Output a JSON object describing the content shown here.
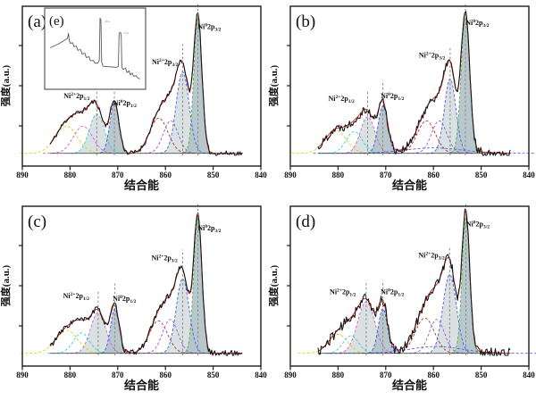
{
  "figure": {
    "background": "#ffffff",
    "colors": {
      "data": "#141414",
      "envelope": "#cf3128",
      "baseline": "#3a3a3a",
      "guide": "#8a8a8a",
      "fill_light": "#cfd9dc",
      "fill_dark": "#b2c2c8",
      "frame": "#1c1c1c",
      "inset_line": "#5a5a5a",
      "tick_text": "#111111"
    }
  },
  "chart_data": [
    {
      "id": "a",
      "panel_label": "(a)",
      "type": "line",
      "xlabel": "结合能",
      "ylabel": "强度(a.u.)",
      "xlim": [
        890,
        840
      ],
      "x_ticks": [
        890,
        880,
        870,
        860,
        850,
        840
      ],
      "data_range": [
        884.2,
        843.8
      ],
      "baseline": 0.015,
      "noise": 0.018,
      "seed": 11,
      "peaks": [
        {
          "center": 880.8,
          "sigma": 2.3,
          "amp": 0.2,
          "color": "#d9d419",
          "fill": null
        },
        {
          "center": 877.3,
          "sigma": 2.0,
          "amp": 0.2,
          "color": "#cf5fd3",
          "fill": null
        },
        {
          "center": 874.4,
          "sigma": 1.55,
          "amp": 0.29,
          "color": "#39cfcf",
          "fill": "light"
        },
        {
          "center": 870.7,
          "sigma": 0.95,
          "amp": 0.37,
          "color": "#3b57e0",
          "fill": "dark"
        },
        {
          "center": 861.4,
          "sigma": 1.9,
          "amp": 0.26,
          "color": "#a03a3a",
          "fill": null
        },
        {
          "center": 858.9,
          "sigma": 1.55,
          "amp": 0.24,
          "color": "#9b59d0",
          "fill": null
        },
        {
          "center": 856.4,
          "sigma": 1.35,
          "amp": 0.6,
          "color": "#4763e8",
          "fill": "light"
        },
        {
          "center": 853.2,
          "sigma": 0.85,
          "amp": 1.0,
          "color": "#52b052",
          "fill": "dark"
        }
      ],
      "guides": [
        {
          "x": 874.4,
          "top": 0.47
        },
        {
          "x": 870.7,
          "top": 0.55
        },
        {
          "x": 856.4,
          "top": 0.82
        },
        {
          "x": 853.2,
          "top": 1.12
        }
      ],
      "annotations": [
        {
          "element": "Ni",
          "charge": "2+",
          "orbital": "2p",
          "spin": "1/2",
          "x": 878.6,
          "y": 0.42
        },
        {
          "element": "Ni",
          "charge": "0",
          "orbital": "2p",
          "spin": "1/2",
          "x": 868.5,
          "y": 0.37
        },
        {
          "element": "Ni",
          "charge": "2+",
          "orbital": "2p",
          "spin": "3/2",
          "x": 860.1,
          "y": 0.67
        },
        {
          "element": "Ni",
          "charge": "0",
          "orbital": "2p",
          "spin": "3/2",
          "x": 850.8,
          "y": 0.93
        }
      ]
    },
    {
      "id": "b",
      "panel_label": "(b)",
      "type": "line",
      "xlabel": "结合能",
      "ylabel": "强度(a.u.)",
      "xlim": [
        890,
        840
      ],
      "x_ticks": [
        890,
        880,
        870,
        860,
        850,
        840
      ],
      "data_range": [
        884.2,
        843.8
      ],
      "baseline": 0.015,
      "noise": 0.032,
      "seed": 22,
      "peaks": [
        {
          "center": 880.5,
          "sigma": 2.2,
          "amp": 0.17,
          "color": "#d9d419",
          "fill": null
        },
        {
          "center": 876.6,
          "sigma": 1.7,
          "amp": 0.16,
          "color": "#39cfcf",
          "fill": null
        },
        {
          "center": 873.8,
          "sigma": 1.5,
          "amp": 0.27,
          "color": "#cf5fd3",
          "fill": "light"
        },
        {
          "center": 870.6,
          "sigma": 1.0,
          "amp": 0.35,
          "color": "#3b57e0",
          "fill": "dark"
        },
        {
          "center": 861.5,
          "sigma": 1.9,
          "amp": 0.24,
          "color": "#a03a3a",
          "fill": null
        },
        {
          "center": 858.8,
          "sigma": 1.6,
          "amp": 0.24,
          "color": "#9b59d0",
          "fill": null
        },
        {
          "center": 860.0,
          "sigma": 6.0,
          "amp": 0.04,
          "color": "#4763e8",
          "fill": null
        },
        {
          "center": 856.5,
          "sigma": 1.2,
          "amp": 0.55,
          "color": "#4763e8",
          "fill": "light"
        },
        {
          "center": 853.3,
          "sigma": 0.9,
          "amp": 1.0,
          "color": "#52b052",
          "fill": "dark"
        }
      ],
      "guides": [
        {
          "x": 873.8,
          "top": 0.47
        },
        {
          "x": 870.6,
          "top": 0.55
        },
        {
          "x": 856.5,
          "top": 0.8
        },
        {
          "x": 853.3,
          "top": 1.13
        }
      ],
      "annotations": [
        {
          "element": "Ni",
          "charge": "2+",
          "orbital": "2p",
          "spin": "1/2",
          "x": 879.3,
          "y": 0.4
        },
        {
          "element": "Ni",
          "charge": "0",
          "orbital": "2p",
          "spin": "1/2",
          "x": 868.6,
          "y": 0.42
        },
        {
          "element": "Ni",
          "charge": "2+",
          "orbital": "2p",
          "spin": "3/2",
          "x": 860.3,
          "y": 0.72
        },
        {
          "element": "Ni",
          "charge": "0",
          "orbital": "2p",
          "spin": "3/2",
          "x": 850.8,
          "y": 0.96
        }
      ]
    },
    {
      "id": "c",
      "panel_label": "(c)",
      "type": "line",
      "xlabel": "结合能",
      "ylabel": "强度(a.u.)",
      "xlim": [
        890,
        840
      ],
      "x_ticks": [
        890,
        880,
        870,
        860,
        850,
        840
      ],
      "data_range": [
        884.2,
        843.8
      ],
      "baseline": 0.015,
      "noise": 0.022,
      "seed": 33,
      "peaks": [
        {
          "center": 880.7,
          "sigma": 2.3,
          "amp": 0.17,
          "color": "#d9d419",
          "fill": null
        },
        {
          "center": 877.6,
          "sigma": 1.7,
          "amp": 0.15,
          "color": "#39cfcf",
          "fill": null
        },
        {
          "center": 874.1,
          "sigma": 1.6,
          "amp": 0.3,
          "color": "#cf5fd3",
          "fill": "light"
        },
        {
          "center": 870.6,
          "sigma": 0.9,
          "amp": 0.33,
          "color": "#3b57e0",
          "fill": "dark"
        },
        {
          "center": 861.5,
          "sigma": 1.9,
          "amp": 0.24,
          "color": "#a03a3a",
          "fill": null
        },
        {
          "center": 859.0,
          "sigma": 1.6,
          "amp": 0.25,
          "color": "#9b59d0",
          "fill": null
        },
        {
          "center": 856.4,
          "sigma": 1.35,
          "amp": 0.55,
          "color": "#4763e8",
          "fill": "light"
        },
        {
          "center": 853.2,
          "sigma": 0.85,
          "amp": 1.0,
          "color": "#52b052",
          "fill": "dark"
        }
      ],
      "guides": [
        {
          "x": 874.1,
          "top": 0.47
        },
        {
          "x": 870.6,
          "top": 0.53
        },
        {
          "x": 856.4,
          "top": 0.78
        },
        {
          "x": 853.2,
          "top": 1.12
        }
      ],
      "annotations": [
        {
          "element": "Ni",
          "charge": "2+",
          "orbital": "2p",
          "spin": "1/2",
          "x": 878.7,
          "y": 0.42
        },
        {
          "element": "Ni",
          "charge": "0",
          "orbital": "2p",
          "spin": "1/2",
          "x": 868.6,
          "y": 0.4
        },
        {
          "element": "Ni",
          "charge": "2+",
          "orbital": "2p",
          "spin": "3/2",
          "x": 860.2,
          "y": 0.7
        },
        {
          "element": "Ni",
          "charge": "0",
          "orbital": "2p",
          "spin": "3/2",
          "x": 850.8,
          "y": 0.92
        }
      ]
    },
    {
      "id": "d",
      "panel_label": "(d)",
      "type": "line",
      "xlabel": "结合能",
      "ylabel": "强度(a.u.)",
      "xlim": [
        890,
        840
      ],
      "x_ticks": [
        890,
        880,
        870,
        860,
        850,
        840
      ],
      "data_range": [
        884.2,
        843.8
      ],
      "baseline": 0.015,
      "noise": 0.038,
      "seed": 44,
      "peaks": [
        {
          "center": 880.0,
          "sigma": 2.0,
          "amp": 0.14,
          "color": "#d9d419",
          "fill": null
        },
        {
          "center": 877.3,
          "sigma": 1.6,
          "amp": 0.13,
          "color": "#39cfcf",
          "fill": null
        },
        {
          "center": 874.1,
          "sigma": 1.8,
          "amp": 0.38,
          "color": "#cf5fd3",
          "fill": "light"
        },
        {
          "center": 870.6,
          "sigma": 0.95,
          "amp": 0.33,
          "color": "#3b57e0",
          "fill": "dark"
        },
        {
          "center": 861.8,
          "sigma": 2.0,
          "amp": 0.26,
          "color": "#a03a3a",
          "fill": null
        },
        {
          "center": 859.3,
          "sigma": 1.6,
          "amp": 0.25,
          "color": "#9b59d0",
          "fill": null
        },
        {
          "center": 859.5,
          "sigma": 5.5,
          "amp": 0.05,
          "color": "#4763e8",
          "fill": null
        },
        {
          "center": 856.6,
          "sigma": 1.4,
          "amp": 0.58,
          "color": "#4763e8",
          "fill": "light"
        },
        {
          "center": 853.2,
          "sigma": 0.8,
          "amp": 1.0,
          "color": "#52b052",
          "fill": "dark"
        }
      ],
      "guides": [
        {
          "x": 874.1,
          "top": 0.55
        },
        {
          "x": 870.6,
          "top": 0.55
        },
        {
          "x": 856.6,
          "top": 0.8
        },
        {
          "x": 853.2,
          "top": 1.12
        }
      ],
      "annotations": [
        {
          "element": "Ni",
          "charge": "2+",
          "orbital": "2p",
          "spin": "1/2",
          "x": 879.0,
          "y": 0.45
        },
        {
          "element": "Ni",
          "charge": "0",
          "orbital": "2p",
          "spin": "1/2",
          "x": 868.6,
          "y": 0.45
        },
        {
          "element": "Ni",
          "charge": "2+",
          "orbital": "2p",
          "spin": "3/2",
          "x": 860.4,
          "y": 0.72
        },
        {
          "element": "Ni",
          "charge": "0",
          "orbital": "2p",
          "spin": "3/2",
          "x": 850.7,
          "y": 0.95
        }
      ]
    },
    {
      "id": "e",
      "panel_label": "(e)",
      "type": "line",
      "parent": "a",
      "points": [
        [
          0.02,
          0.5
        ],
        [
          0.07,
          0.47
        ],
        [
          0.12,
          0.44
        ],
        [
          0.17,
          0.4
        ],
        [
          0.205,
          0.37
        ],
        [
          0.215,
          0.3
        ],
        [
          0.225,
          0.4
        ],
        [
          0.235,
          0.44
        ],
        [
          0.26,
          0.43
        ],
        [
          0.275,
          0.485
        ],
        [
          0.3,
          0.475
        ],
        [
          0.315,
          0.535
        ],
        [
          0.345,
          0.525
        ],
        [
          0.36,
          0.585
        ],
        [
          0.39,
          0.575
        ],
        [
          0.405,
          0.635
        ],
        [
          0.435,
          0.625
        ],
        [
          0.45,
          0.68
        ],
        [
          0.48,
          0.675
        ],
        [
          0.5,
          0.715
        ],
        [
          0.53,
          0.71
        ],
        [
          0.545,
          0.665
        ],
        [
          0.552,
          0.09
        ],
        [
          0.562,
          0.12
        ],
        [
          0.57,
          0.7
        ],
        [
          0.585,
          0.755
        ],
        [
          0.63,
          0.76
        ],
        [
          0.68,
          0.765
        ],
        [
          0.73,
          0.77
        ],
        [
          0.748,
          0.755
        ],
        [
          0.755,
          0.3
        ],
        [
          0.77,
          0.285
        ],
        [
          0.778,
          0.33
        ],
        [
          0.785,
          0.77
        ],
        [
          0.8,
          0.8
        ],
        [
          0.825,
          0.78
        ],
        [
          0.84,
          0.845
        ],
        [
          0.862,
          0.82
        ],
        [
          0.875,
          0.875
        ],
        [
          0.895,
          0.85
        ],
        [
          0.91,
          0.895
        ],
        [
          0.935,
          0.885
        ],
        [
          0.955,
          0.92
        ],
        [
          0.98,
          0.93
        ]
      ],
      "peak_labels": [
        {
          "text": "O1s",
          "x": 0.605,
          "y": 0.15
        },
        {
          "text": "C1s",
          "x": 0.805,
          "y": 0.31
        }
      ]
    }
  ]
}
